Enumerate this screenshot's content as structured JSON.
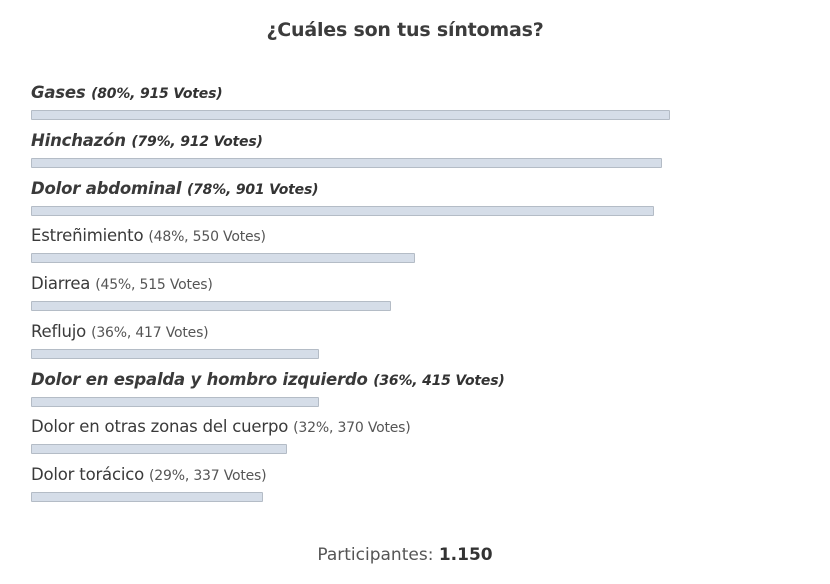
{
  "poll": {
    "title": "¿Cuáles son tus síntomas?",
    "options": [
      {
        "label": "Gases",
        "stats": "(80%, 915 Votes)",
        "percent": 80,
        "votes": 915,
        "top": true
      },
      {
        "label": "Hinchazón",
        "stats": "(79%, 912 Votes)",
        "percent": 79,
        "votes": 912,
        "top": true
      },
      {
        "label": "Dolor abdominal",
        "stats": "(78%, 901 Votes)",
        "percent": 78,
        "votes": 901,
        "top": true
      },
      {
        "label": "Estreñimiento",
        "stats": "(48%, 550 Votes)",
        "percent": 48,
        "votes": 550,
        "top": false
      },
      {
        "label": "Diarrea",
        "stats": "(45%, 515 Votes)",
        "percent": 45,
        "votes": 515,
        "top": false
      },
      {
        "label": "Reflujo",
        "stats": "(36%, 417 Votes)",
        "percent": 36,
        "votes": 417,
        "top": false
      },
      {
        "label": "Dolor en espalda y hombro izquierdo",
        "stats": "(36%, 415 Votes)",
        "percent": 36,
        "votes": 415,
        "top": true
      },
      {
        "label": "Dolor en otras zonas del cuerpo",
        "stats": "(32%, 370 Votes)",
        "percent": 32,
        "votes": 370,
        "top": false
      },
      {
        "label": "Dolor torácico",
        "stats": "(29%, 337 Votes)",
        "percent": 29,
        "votes": 337,
        "top": false
      }
    ],
    "footer_label": "Participantes:",
    "participants": "1.150",
    "bar_fill_color": "#d5dde8",
    "bar_border_color": "#b4bcc6"
  }
}
